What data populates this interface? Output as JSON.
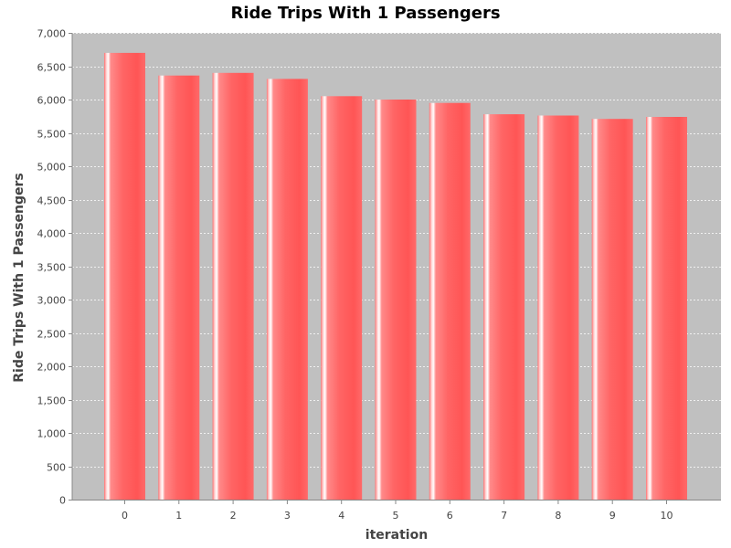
{
  "chart_data": {
    "type": "bar",
    "title": "Ride Trips With 1 Passengers",
    "xlabel": "iteration",
    "ylabel": "Ride Trips With 1 Passengers",
    "categories": [
      "0",
      "1",
      "2",
      "3",
      "4",
      "5",
      "6",
      "7",
      "8",
      "9",
      "10"
    ],
    "values": [
      6700,
      6360,
      6400,
      6310,
      6050,
      6000,
      5950,
      5780,
      5760,
      5710,
      5740
    ],
    "ylim": [
      0,
      7000
    ],
    "yticks": [
      0,
      500,
      1000,
      1500,
      2000,
      2500,
      3000,
      3500,
      4000,
      4500,
      5000,
      5500,
      6000,
      6500,
      7000
    ],
    "ytick_labels": [
      "0",
      "500",
      "1,000",
      "1,500",
      "2,000",
      "2,500",
      "3,000",
      "3,500",
      "4,000",
      "4,500",
      "5,000",
      "5,500",
      "6,000",
      "6,500",
      "7,000"
    ],
    "grid": true,
    "colors": {
      "plot_background": "#c0c0c0",
      "bar": "#ff5555",
      "bar_highlight": "#ffffff",
      "grid": "#ffffff",
      "axis": "#888888"
    }
  }
}
